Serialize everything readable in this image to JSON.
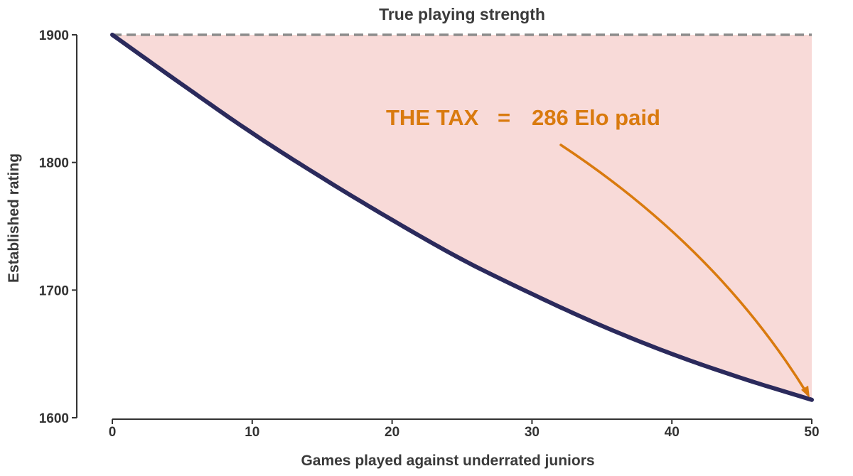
{
  "chart_data": {
    "type": "line",
    "xlabel": "Games played against underrated juniors",
    "ylabel": "Established rating",
    "xlim": [
      0,
      50
    ],
    "ylim": [
      1600,
      1900
    ],
    "x_ticks": [
      0,
      10,
      20,
      30,
      40,
      50
    ],
    "y_ticks": [
      1600,
      1700,
      1800,
      1900
    ],
    "grid": false,
    "series": [
      {
        "color": "#2b2a5c",
        "x": [
          0,
          5,
          10,
          15,
          20,
          25,
          30,
          35,
          40,
          45,
          50
        ],
        "y": [
          1900,
          1861,
          1823,
          1788,
          1755,
          1724,
          1697,
          1672,
          1650,
          1631,
          1614
        ]
      }
    ],
    "reference_line": {
      "label": "True playing strength",
      "y": 1900,
      "style": "dashed",
      "color": "#8c8c8c"
    },
    "shaded_region": {
      "between": "reference line and curve",
      "color": "#f8dad8"
    },
    "annotation": {
      "left": "THE TAX",
      "equals": "=",
      "right": "286 Elo paid",
      "color": "#d97a0e",
      "points_to": {
        "x": 50,
        "y": 1614
      }
    }
  }
}
